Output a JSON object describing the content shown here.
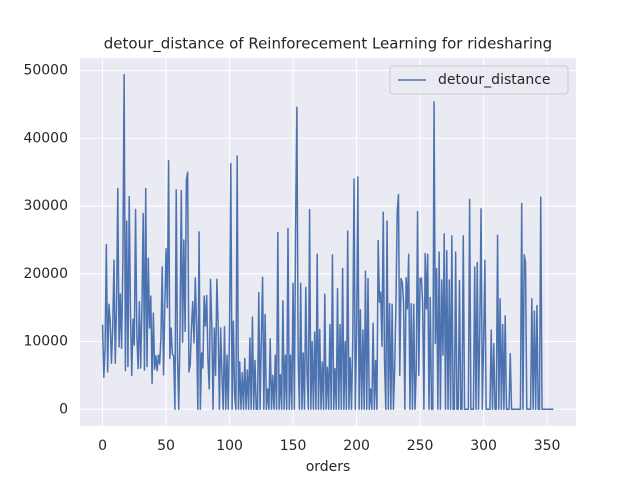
{
  "chart_data": {
    "type": "line",
    "title": "detour_distance of Reinforecement Learning for ridesharing",
    "xlabel": "orders",
    "xlim": [
      -17.75,
      372.75
    ],
    "xticks": [
      0,
      50,
      100,
      150,
      200,
      250,
      300,
      350
    ],
    "ylim": [
      -2470,
      51870
    ],
    "yticks": [
      0,
      10000,
      20000,
      30000,
      40000,
      50000
    ],
    "grid": true,
    "legend": "upper right",
    "series": [
      {
        "name": "detour_distance",
        "color": "#4c72b0",
        "values": [
          12500,
          4700,
          9000,
          24300,
          5500,
          15500,
          13000,
          6800,
          12000,
          22000,
          6800,
          15000,
          32600,
          9200,
          17000,
          9000,
          22000,
          49400,
          5700,
          27800,
          6300,
          31400,
          14200,
          5000,
          13300,
          9500,
          29500,
          11000,
          6000,
          15900,
          6100,
          15000,
          28900,
          5800,
          32600,
          6300,
          22300,
          12000,
          16700,
          3800,
          14200,
          5900,
          7900,
          5700,
          8000,
          6700,
          10800,
          21000,
          5100,
          14800,
          23700,
          15000,
          36700,
          7500,
          12000,
          8200,
          7800,
          0,
          32400,
          8000,
          0,
          12000,
          32300,
          9900,
          25000,
          11500,
          33900,
          35000,
          5500,
          6500,
          12000,
          15900,
          9800,
          19400,
          12300,
          0,
          26200,
          0,
          8300,
          6100,
          16700,
          12300,
          16800,
          7200,
          3000,
          19200,
          12400,
          0,
          12000,
          5000,
          19200,
          12400,
          0,
          12000,
          5000,
          0,
          12200,
          0,
          8000,
          0,
          12000,
          36300,
          0,
          13000,
          2000,
          0,
          37400,
          0,
          7000,
          0,
          5400,
          0,
          7500,
          0,
          5800,
          0,
          10500,
          0,
          13600,
          0,
          7200,
          0,
          0,
          17200,
          0,
          10200,
          19500,
          0,
          14000,
          0,
          3000,
          0,
          10400,
          0,
          5000,
          0,
          8000,
          0,
          26100,
          0,
          5100,
          0,
          16000,
          0,
          8000,
          0,
          26700,
          0,
          8000,
          0,
          18600,
          0,
          27000,
          44600,
          7700,
          0,
          18600,
          0,
          8300,
          0,
          18000,
          5500,
          0,
          29500,
          0,
          10000,
          0,
          11400,
          0,
          22900,
          0,
          11800,
          0,
          7000,
          0,
          17000,
          0,
          6200,
          0,
          12500,
          0,
          22800,
          0,
          6000,
          0,
          17800,
          0,
          12500,
          0,
          20800,
          0,
          10000,
          0,
          26300,
          0,
          7600,
          0,
          10000,
          34000,
          0,
          11000,
          34300,
          0,
          14700,
          0,
          11700,
          0,
          20400,
          0,
          19300,
          0,
          3000,
          0,
          12700,
          0,
          7200,
          0,
          24900,
          15800,
          17300,
          9300,
          29100,
          7200,
          0,
          27800,
          0,
          15600,
          0,
          15500,
          0,
          6000,
          15500,
          29200,
          31700,
          5000,
          19300,
          18700,
          15800,
          0,
          19400,
          14800,
          22900,
          0,
          15600,
          0,
          15500,
          0,
          6000,
          29200,
          5000,
          19300,
          19400,
          15800,
          0,
          23000,
          14800,
          22900,
          0,
          16500,
          0,
          0,
          45400,
          9700,
          20800,
          0,
          23200,
          0,
          19100,
          8000,
          25900,
          0,
          23400,
          0,
          19100,
          0,
          25600,
          0,
          0,
          23200,
          0,
          0,
          19000,
          0,
          0,
          25600,
          0,
          0,
          0,
          0,
          31000,
          0,
          0,
          0,
          21000,
          0,
          21700,
          0,
          11700,
          29600,
          0,
          9700,
          22000,
          0,
          0,
          0,
          0,
          11700,
          0,
          9700,
          0,
          0,
          25700,
          0,
          16300,
          0,
          12500,
          0,
          13800,
          0,
          0,
          0,
          8200,
          0,
          0,
          0,
          0,
          0,
          0,
          0,
          0,
          30400,
          0,
          22800,
          21700,
          0,
          0,
          0,
          0,
          16300,
          0,
          14500,
          0,
          15300,
          0,
          0,
          31300,
          0,
          0,
          0,
          0,
          0,
          0,
          0,
          0,
          0,
          0
        ]
      }
    ]
  }
}
